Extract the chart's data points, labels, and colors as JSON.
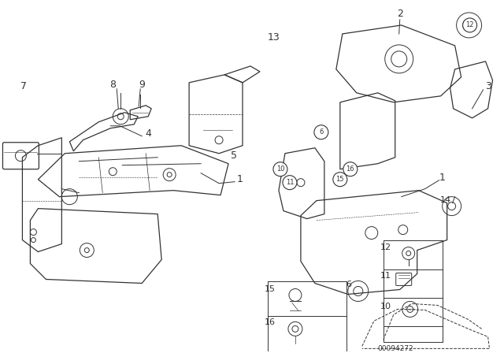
{
  "bg_color": "#ffffff",
  "line_color": "#333333",
  "diagram_code": "00094272"
}
